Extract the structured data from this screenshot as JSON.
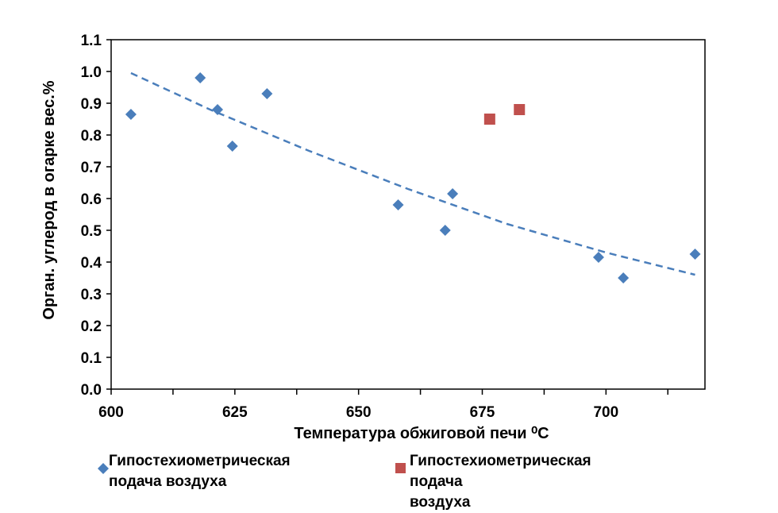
{
  "chart_data": {
    "type": "scatter",
    "xlabel": "Температура обжиговой печи ⁰C",
    "ylabel": "Орган. углерод в  огарке вес.%",
    "xlim": [
      600,
      720
    ],
    "ylim": [
      0,
      1.1
    ],
    "xticks": [
      600,
      625,
      650,
      675,
      700
    ],
    "yticks": [
      0.0,
      0.1,
      0.2,
      0.3,
      0.4,
      0.5,
      0.6,
      0.7,
      0.8,
      0.9,
      1.0,
      1.1
    ],
    "grid": false,
    "series": [
      {
        "name": "Гипостехиометрическая подача воздуха",
        "marker": "diamond",
        "color": "#4a7ebb",
        "points": [
          {
            "x": 604,
            "y": 0.865
          },
          {
            "x": 618,
            "y": 0.98
          },
          {
            "x": 621.5,
            "y": 0.88
          },
          {
            "x": 624.5,
            "y": 0.765
          },
          {
            "x": 631.5,
            "y": 0.93
          },
          {
            "x": 658,
            "y": 0.58
          },
          {
            "x": 667.5,
            "y": 0.5
          },
          {
            "x": 669,
            "y": 0.615
          },
          {
            "x": 698.5,
            "y": 0.415
          },
          {
            "x": 703.5,
            "y": 0.35
          },
          {
            "x": 718,
            "y": 0.425
          }
        ]
      },
      {
        "name": "Гипостехиометрическая подача воздуха",
        "marker": "square",
        "color": "#c0504d",
        "points": [
          {
            "x": 676.5,
            "y": 0.85
          },
          {
            "x": 682.5,
            "y": 0.88
          }
        ]
      }
    ],
    "trendline": {
      "style": "dashed",
      "color": "#4a7ebb",
      "points": [
        {
          "x": 604,
          "y": 0.995
        },
        {
          "x": 620,
          "y": 0.88
        },
        {
          "x": 640,
          "y": 0.75
        },
        {
          "x": 660,
          "y": 0.63
        },
        {
          "x": 680,
          "y": 0.52
        },
        {
          "x": 700,
          "y": 0.43
        },
        {
          "x": 718,
          "y": 0.36
        }
      ]
    },
    "legend_position": "bottom"
  },
  "legend": {
    "item1_line1": "Гипостехиометрическая",
    "item1_line2": "подача воздуха",
    "item2_line1": "Гипостехиометрическая подача",
    "item2_line2": "воздуха"
  }
}
